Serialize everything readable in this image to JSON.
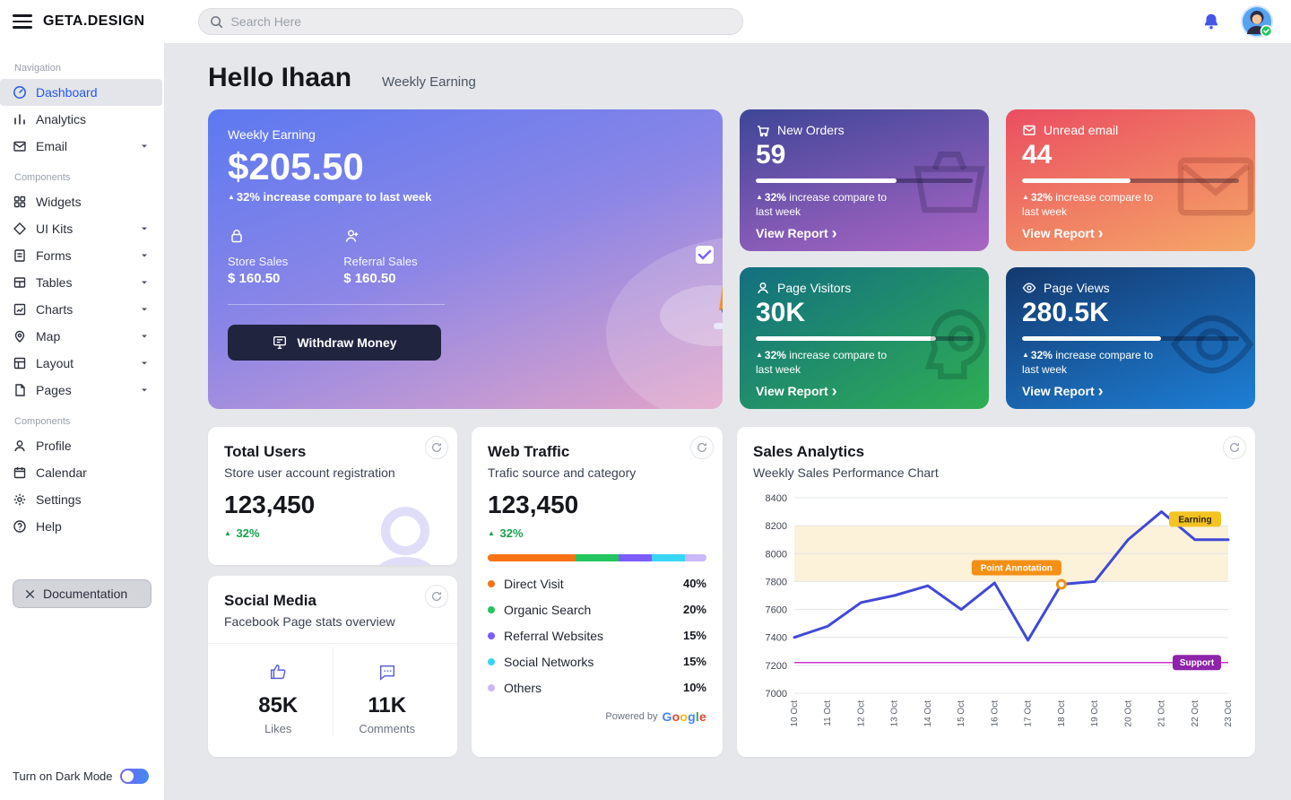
{
  "topbar": {
    "logo": "GETA.DESIGN",
    "search_placeholder": "Search Here"
  },
  "sidebar": {
    "nav_label": "Navigation",
    "items": [
      {
        "label": "Dashboard"
      },
      {
        "label": "Analytics"
      },
      {
        "label": "Email"
      }
    ],
    "components_label": "Components",
    "component_items": [
      {
        "label": "Widgets"
      },
      {
        "label": "UI Kits"
      },
      {
        "label": "Forms"
      },
      {
        "label": "Tables"
      },
      {
        "label": "Charts"
      },
      {
        "label": "Map"
      },
      {
        "label": "Layout"
      },
      {
        "label": "Pages"
      }
    ],
    "components2_label": "Components",
    "extra_items": [
      {
        "label": "Profile"
      },
      {
        "label": "Calendar"
      },
      {
        "label": "Settings"
      },
      {
        "label": "Help"
      }
    ],
    "documentation": "Documentation",
    "dark_mode": "Turn on Dark Mode"
  },
  "header": {
    "greeting": "Hello Ihaan",
    "subtitle": "Weekly Earning"
  },
  "earning_card": {
    "label": "Weekly Earning",
    "amount": "$205.50",
    "change": "32% increase compare to last week",
    "store_sales_label": "Store Sales",
    "store_sales_value": "$ 160.50",
    "referral_sales_label": "Referral Sales",
    "referral_sales_value": "$ 160.50",
    "withdraw": "Withdraw Money"
  },
  "stat_cards": [
    {
      "title": "New Orders",
      "value": "59",
      "change_pct": "32%",
      "change_text": "increase compare to last week",
      "cta": "View Report",
      "progress": 65
    },
    {
      "title": "Unread email",
      "value": "44",
      "change_pct": "32%",
      "change_text": "increase compare to last week",
      "cta": "View Report",
      "progress": 50
    },
    {
      "title": "Page Visitors",
      "value": "30K",
      "change_pct": "32%",
      "change_text": "increase compare to last week",
      "cta": "View Report",
      "progress": 83
    },
    {
      "title": "Page Views",
      "value": "280.5K",
      "change_pct": "32%",
      "change_text": "increase compare to last week",
      "cta": "View Report",
      "progress": 64
    }
  ],
  "total_users": {
    "title": "Total Users",
    "subtitle": "Store user account registration",
    "value": "123,450",
    "change": "32%"
  },
  "social_media": {
    "title": "Social Media",
    "subtitle": "Facebook Page stats overview",
    "stats": [
      {
        "value": "85K",
        "label": "Likes"
      },
      {
        "value": "11K",
        "label": "Comments"
      }
    ]
  },
  "web_traffic": {
    "title": "Web Traffic",
    "subtitle": "Trafic source and category",
    "value": "123,450",
    "change": "32%",
    "segments": [
      {
        "label": "Direct Visit",
        "pct": "40%",
        "value": 40,
        "color": "#f97316"
      },
      {
        "label": "Organic Search",
        "pct": "20%",
        "value": 20,
        "color": "#22c55e"
      },
      {
        "label": "Referral Websites",
        "pct": "15%",
        "value": 15,
        "color": "#7c5cfc"
      },
      {
        "label": "Social Networks",
        "pct": "15%",
        "value": 15,
        "color": "#38d6f5"
      },
      {
        "label": "Others",
        "pct": "10%",
        "value": 10,
        "color": "#c9b8fa"
      }
    ],
    "powered_by": "Powered by",
    "brand": "Google",
    "brand_colors": [
      "#4285F4",
      "#EA4335",
      "#FBBC05",
      "#4285F4",
      "#34A853",
      "#EA4335"
    ]
  },
  "sales_analytics": {
    "title": "Sales Analytics",
    "subtitle": "Weekly Sales Performance Chart",
    "chart_data": {
      "type": "line",
      "x": [
        "10 Oct",
        "11 Oct",
        "12 Oct",
        "13 Oct",
        "14 Oct",
        "15 Oct",
        "16 Oct",
        "17 Oct",
        "18 Oct",
        "19 Oct",
        "20 Oct",
        "21 Oct",
        "22 Oct",
        "23 Oct"
      ],
      "series": [
        {
          "name": "Sales",
          "values": [
            7400,
            7480,
            7650,
            7700,
            7770,
            7600,
            7790,
            7380,
            7780,
            7800,
            8100,
            8300,
            8100,
            8100
          ]
        }
      ],
      "ylim": [
        7000,
        8400
      ],
      "yticks": [
        7000,
        7200,
        7400,
        7600,
        7800,
        8000,
        8200,
        8400
      ],
      "line_color": "#4149d6",
      "grid": true,
      "band": {
        "from": 7800,
        "to": 8200,
        "color": "#fbf2d9"
      },
      "annotations": {
        "earning": {
          "label": "Earning",
          "color": "#f3c321",
          "text_color": "#2b2410",
          "y": 8250
        },
        "point": {
          "label": "Point Annotation",
          "index": 8,
          "color": "#f59016"
        },
        "support": {
          "label": "Support",
          "y": 7220,
          "color": "#8e24aa",
          "line_color": "#cd31cd"
        }
      }
    }
  },
  "colors": {
    "accent_blue": "#2458e6",
    "success_green": "#16a34a"
  }
}
